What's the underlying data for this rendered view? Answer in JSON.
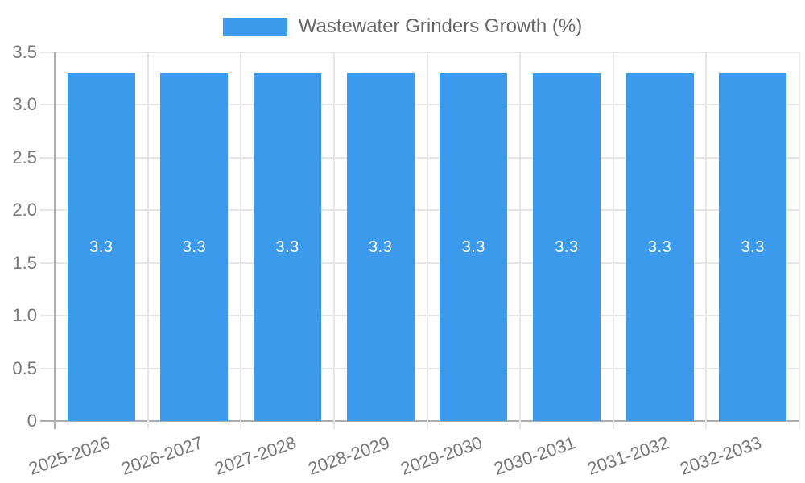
{
  "chart_data": {
    "type": "bar",
    "legend_label": "Wastewater Grinders Growth (%)",
    "legend_position": "top",
    "categories": [
      "2025-2026",
      "2026-2027",
      "2027-2028",
      "2028-2029",
      "2029-2030",
      "2030-2031",
      "2031-2032",
      "2032-2033"
    ],
    "values": [
      3.3,
      3.3,
      3.3,
      3.3,
      3.3,
      3.3,
      3.3,
      3.3
    ],
    "bar_value_labels": [
      "3.3",
      "3.3",
      "3.3",
      "3.3",
      "3.3",
      "3.3",
      "3.3",
      "3.3"
    ],
    "ylim": [
      0,
      3.5
    ],
    "ytick_step": 0.5,
    "ytick_labels": [
      "3.5",
      "3.0",
      "2.5",
      "2.0",
      "1.5",
      "1.0",
      "0.5",
      "0"
    ],
    "grid": true,
    "x_label_rotation_deg": -19,
    "colors": {
      "bar": "#3B9AEC",
      "grid_line": "#E6E6E6",
      "axis_line": "#ADADAD",
      "tick_text": "#777777",
      "legend_text": "#666666",
      "bar_label_text": "#FFFFFF",
      "background": "#FFFFFF"
    }
  }
}
